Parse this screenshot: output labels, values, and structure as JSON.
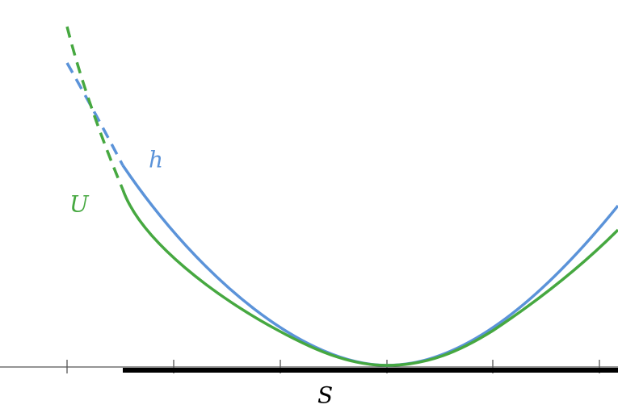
{
  "labels": {
    "h": "h",
    "U": "U",
    "S": "S"
  }
}
